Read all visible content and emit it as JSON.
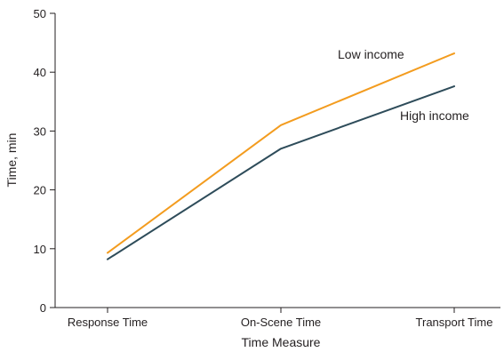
{
  "chart_data": {
    "type": "line",
    "title": "",
    "xlabel": "Time Measure",
    "ylabel": "Time, min",
    "categories": [
      "Response Time",
      "On-Scene Time",
      "Transport Time"
    ],
    "ylim": [
      0,
      50
    ],
    "yticks": [
      0,
      10,
      20,
      30,
      40,
      50
    ],
    "grid": false,
    "legend": "none",
    "series": [
      {
        "name": "Low income",
        "color": "#f39c1f",
        "values": [
          9.3,
          31.0,
          43.2
        ]
      },
      {
        "name": "High income",
        "color": "#2e4c5a",
        "values": [
          8.2,
          27.0,
          37.6
        ]
      }
    ]
  }
}
